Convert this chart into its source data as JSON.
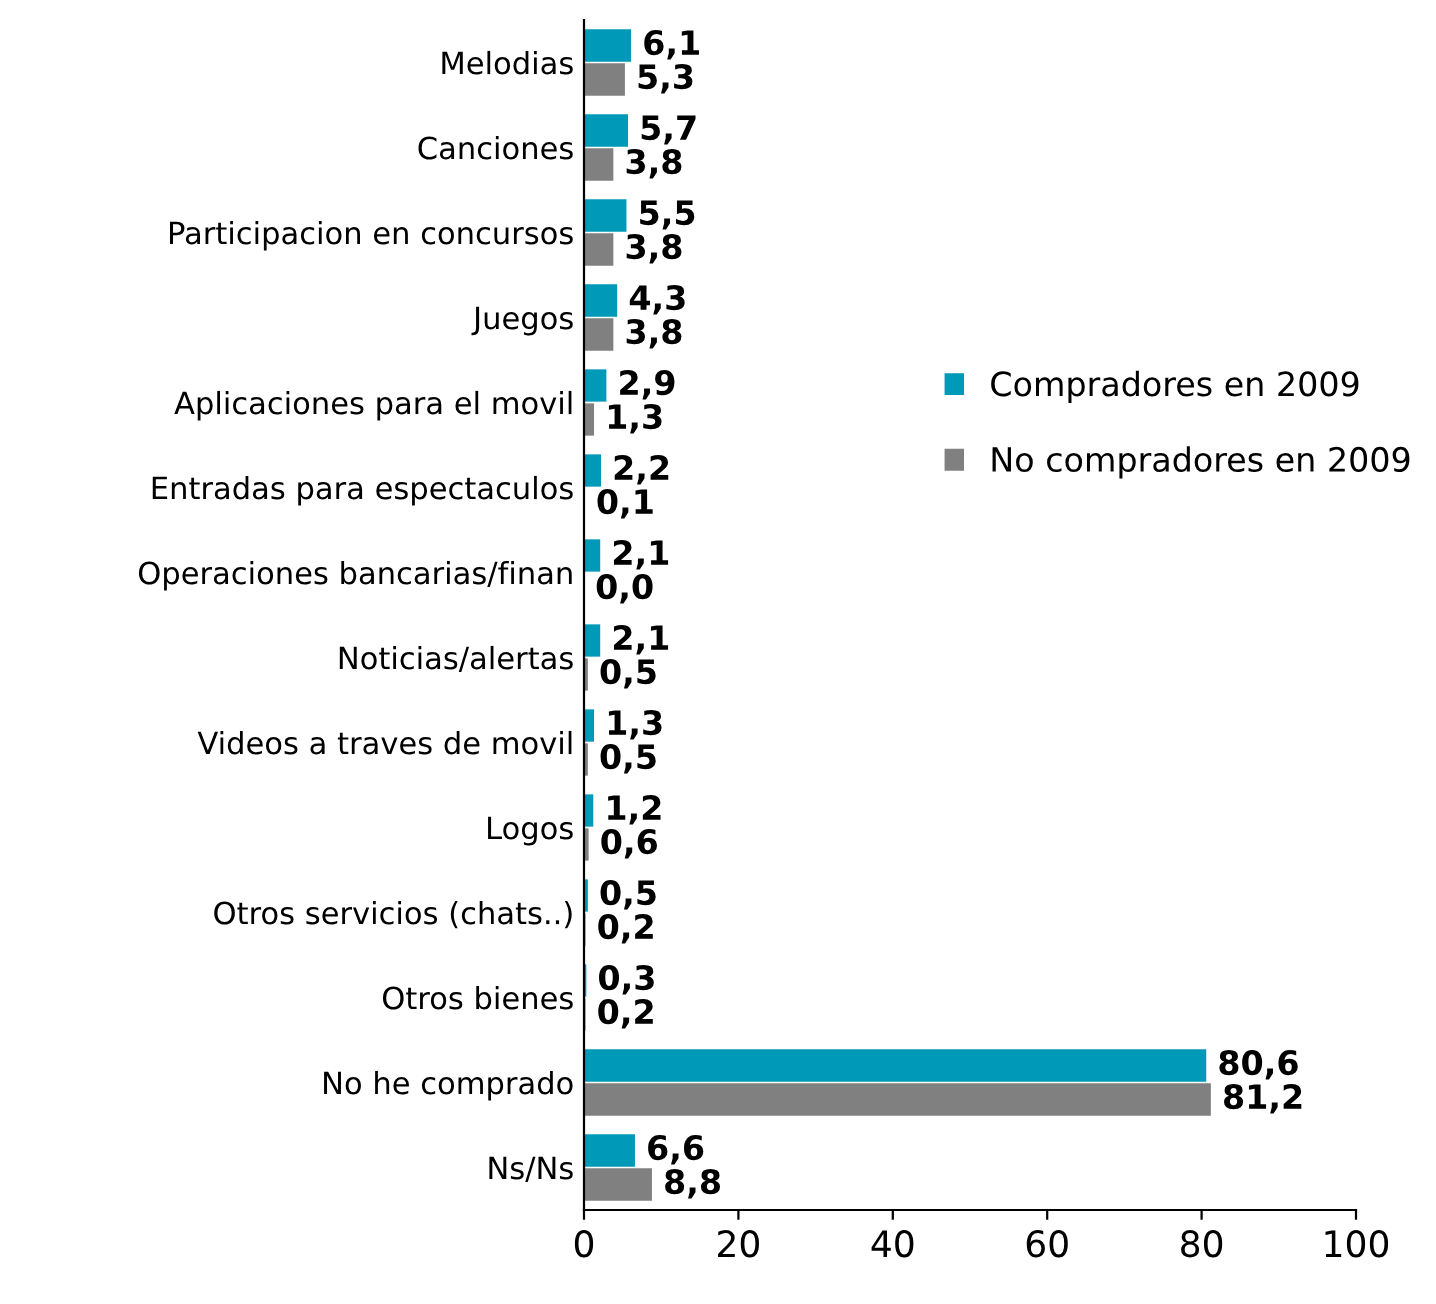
{
  "chart_data": {
    "type": "bar",
    "orientation": "horizontal",
    "categories": [
      "Melodias",
      "Canciones",
      "Participacion en concursos",
      "Juegos",
      "Aplicaciones para el movil",
      "Entradas para espectaculos",
      "Operaciones bancarias/finan",
      "Noticias/alertas",
      "Videos a traves de movil",
      "Logos",
      "Otros servicios (chats..)",
      "Otros bienes",
      "No he comprado",
      "Ns/Ns"
    ],
    "series": [
      {
        "name": "Compradores en 2009",
        "color": "#0099b8",
        "values": [
          6.1,
          5.7,
          5.5,
          4.3,
          2.9,
          2.2,
          2.1,
          2.1,
          1.3,
          1.2,
          0.5,
          0.3,
          80.6,
          6.6
        ],
        "value_labels": [
          "6,1",
          "5,7",
          "5,5",
          "4,3",
          "2,9",
          "2,2",
          "2,1",
          "2,1",
          "1,3",
          "1,2",
          "0,5",
          "0,3",
          "80,6",
          "6,6"
        ]
      },
      {
        "name": "No compradores en 2009",
        "color": "#808080",
        "values": [
          5.3,
          3.8,
          3.8,
          3.8,
          1.3,
          0.1,
          0.0,
          0.5,
          0.5,
          0.6,
          0.2,
          0.2,
          81.2,
          8.8
        ],
        "value_labels": [
          "5,3",
          "3,8",
          "3,8",
          "3,8",
          "1,3",
          "0,1",
          "0,0",
          "0,5",
          "0,5",
          "0,6",
          "0,2",
          "0,2",
          "81,2",
          "8,8"
        ]
      }
    ],
    "xlim": [
      0,
      100
    ],
    "xticks": [
      0,
      20,
      40,
      60,
      80,
      100
    ],
    "grid": false,
    "legend": "right"
  }
}
